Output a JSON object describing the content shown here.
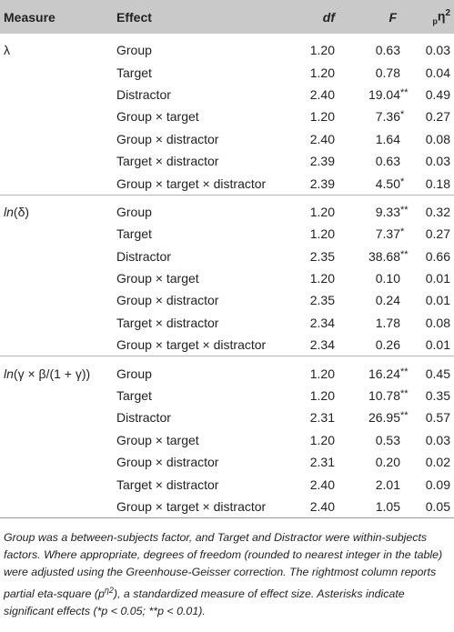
{
  "header": {
    "measure": "Measure",
    "effect": "Effect",
    "df": "df",
    "f": "F",
    "eta_sub": "p",
    "eta_main": "η",
    "eta_sup": "2"
  },
  "groups": [
    {
      "measure": "λ",
      "rows": [
        {
          "effect": "Group",
          "df": "1.20",
          "f": "0.63",
          "stars": "",
          "eta": "0.03"
        },
        {
          "effect": "Target",
          "df": "1.20",
          "f": "0.78",
          "stars": "",
          "eta": "0.04"
        },
        {
          "effect": "Distractor",
          "df": "2.40",
          "f": "19.04",
          "stars": "**",
          "eta": "0.49"
        },
        {
          "effect": "Group × target",
          "df": "1.20",
          "f": "7.36",
          "stars": "*",
          "eta": "0.27"
        },
        {
          "effect": "Group × distractor",
          "df": "2.40",
          "f": "1.64",
          "stars": "",
          "eta": "0.08"
        },
        {
          "effect": "Target × distractor",
          "df": "2.39",
          "f": "0.63",
          "stars": "",
          "eta": "0.03"
        },
        {
          "effect": "Group × target × distractor",
          "df": "2.39",
          "f": "4.50",
          "stars": "*",
          "eta": "0.18"
        }
      ]
    },
    {
      "measure": "ln(δ)",
      "rows": [
        {
          "effect": "Group",
          "df": "1.20",
          "f": "9.33",
          "stars": "**",
          "eta": "0.32"
        },
        {
          "effect": "Target",
          "df": "1.20",
          "f": "7.37",
          "stars": "*",
          "eta": "0.27"
        },
        {
          "effect": "Distractor",
          "df": "2.35",
          "f": "38.68",
          "stars": "**",
          "eta": "0.66"
        },
        {
          "effect": "Group × target",
          "df": "1.20",
          "f": "0.10",
          "stars": "",
          "eta": "0.01"
        },
        {
          "effect": "Group × distractor",
          "df": "2.35",
          "f": "0.24",
          "stars": "",
          "eta": "0.01"
        },
        {
          "effect": "Target × distractor",
          "df": "2.34",
          "f": "1.78",
          "stars": "",
          "eta": "0.08"
        },
        {
          "effect": "Group × target × distractor",
          "df": "2.34",
          "f": "0.26",
          "stars": "",
          "eta": "0.01"
        }
      ]
    },
    {
      "measure": "ln(γ × β/(1 + γ))",
      "rows": [
        {
          "effect": "Group",
          "df": "1.20",
          "f": "16.24",
          "stars": "**",
          "eta": "0.45"
        },
        {
          "effect": "Target",
          "df": "1.20",
          "f": "10.78",
          "stars": "**",
          "eta": "0.35"
        },
        {
          "effect": "Distractor",
          "df": "2.31",
          "f": "26.95",
          "stars": "**",
          "eta": "0.57"
        },
        {
          "effect": "Group × target",
          "df": "1.20",
          "f": "0.53",
          "stars": "",
          "eta": "0.03"
        },
        {
          "effect": "Group × distractor",
          "df": "2.31",
          "f": "0.20",
          "stars": "",
          "eta": "0.02"
        },
        {
          "effect": "Target × distractor",
          "df": "2.40",
          "f": "2.01",
          "stars": "",
          "eta": "0.09"
        },
        {
          "effect": "Group × target × distractor",
          "df": "2.40",
          "f": "1.05",
          "stars": "",
          "eta": "0.05"
        }
      ]
    }
  ],
  "note": {
    "part1": "Group was a between-subjects factor, and Target and Distractor were within-subjects factors. Where appropriate, degrees of freedom (rounded to nearest integer in the table) were adjusted using the Greenhouse-Geisser correction. The rightmost column reports partial eta-square (p",
    "part1_sup": "η2",
    "part2": "), a standardized measure of effect size. Asterisks indicate significant effects (*p < 0.05; **p < 0.01)."
  }
}
